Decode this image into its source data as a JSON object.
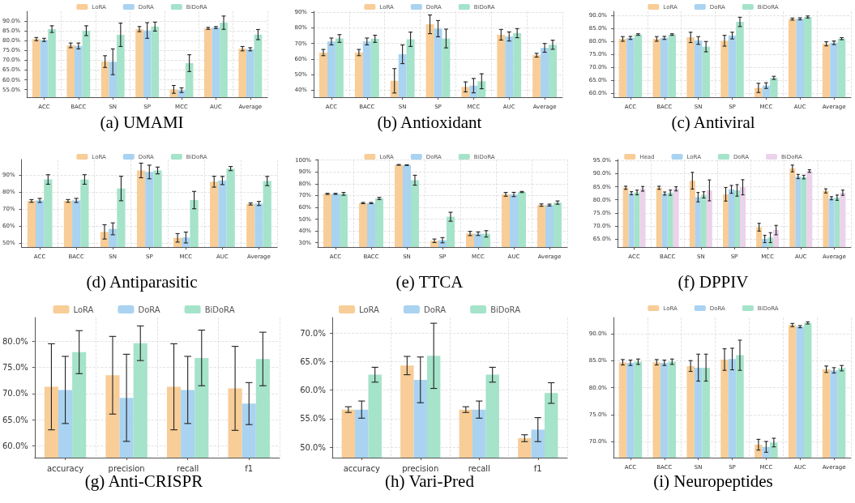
{
  "chart_data": [
    {
      "type": "bar",
      "title": "(a) UMAMI",
      "categories": [
        "ACC",
        "BACC",
        "SN",
        "SP",
        "MCC",
        "AUC",
        "Average"
      ],
      "series": [
        {
          "name": "LoRA",
          "color": "#f8cd97",
          "values": [
            80.8,
            77.6,
            69.3,
            85.9,
            55.1,
            86.3,
            75.9
          ],
          "errors": [
            0.8,
            1.2,
            3,
            1.3,
            2,
            0.5,
            1.1
          ]
        },
        {
          "name": "DoRA",
          "color": "#a9d3f1",
          "values": [
            80.4,
            77.3,
            69.2,
            85.2,
            54.7,
            86.7,
            75.6
          ],
          "errors": [
            0.8,
            1.5,
            6.6,
            4,
            1.2,
            0.5,
            0.8
          ]
        },
        {
          "name": "BiDoRA",
          "color": "#a5e3ca",
          "values": [
            85.9,
            85.1,
            83.0,
            87.2,
            68.5,
            89.2,
            83.1
          ],
          "errors": [
            1.7,
            2.5,
            6,
            2.3,
            4.3,
            3.4,
            2.6
          ]
        }
      ],
      "ylim": [
        51.1,
        95
      ],
      "yticks": [
        {
          "value": 55,
          "label": "55.0%"
        },
        {
          "value": 60,
          "label": "60.0%"
        },
        {
          "value": 65,
          "label": "65.0%"
        },
        {
          "value": 70,
          "label": "70.0%"
        },
        {
          "value": 75,
          "label": "75.0%"
        },
        {
          "value": 80,
          "label": "80.0%"
        },
        {
          "value": 85,
          "label": "85.0%"
        },
        {
          "value": 90,
          "label": "90.0%"
        }
      ],
      "grid": true,
      "legend": "top"
    },
    {
      "type": "bar",
      "title": "(b) Antioxidant",
      "categories": [
        "ACC",
        "BACC",
        "SN",
        "SP",
        "MCC",
        "AUC",
        "Average"
      ],
      "series": [
        {
          "name": "LoRA",
          "color": "#f8cd97",
          "values": [
            64.1,
            64.1,
            46.0,
            82.2,
            42.1,
            75.5,
            62.4
          ],
          "errors": [
            2,
            2,
            7.8,
            6,
            3.2,
            3.4,
            1.2
          ]
        },
        {
          "name": "DoRA",
          "color": "#a9d3f1",
          "values": [
            71.2,
            71.2,
            63.0,
            79.4,
            42.9,
            74.4,
            67.1
          ],
          "errors": [
            2.2,
            2.2,
            6,
            5.2,
            4.6,
            2.9,
            2.8
          ]
        },
        {
          "name": "BiDoRA",
          "color": "#a5e3ca",
          "values": [
            73.1,
            72.9,
            72.6,
            73.1,
            45.7,
            76.5,
            69.1
          ],
          "errors": [
            2.5,
            2.3,
            4.6,
            6,
            4.8,
            2.9,
            2.9
          ]
        }
      ],
      "ylim": [
        35.5,
        90.5
      ],
      "yticks": [
        {
          "value": 40,
          "label": "40%"
        },
        {
          "value": 50,
          "label": "50%"
        },
        {
          "value": 60,
          "label": "60%"
        },
        {
          "value": 70,
          "label": "70%"
        },
        {
          "value": 80,
          "label": "80%"
        },
        {
          "value": 90,
          "label": "90%"
        }
      ],
      "grid": true,
      "legend": "top"
    },
    {
      "type": "bar",
      "title": "(c) Antiviral",
      "categories": [
        "ACC",
        "BACC",
        "SN",
        "SP",
        "MCC",
        "AUC",
        "Average"
      ],
      "series": [
        {
          "name": "LoRA",
          "color": "#f8cd97",
          "values": [
            81.0,
            81.0,
            81.6,
            80.3,
            62.0,
            88.7,
            79.1
          ],
          "errors": [
            0.9,
            0.9,
            2,
            2.1,
            1.8,
            0.4,
            0.8
          ]
        },
        {
          "name": "DoRA",
          "color": "#a9d3f1",
          "values": [
            81.4,
            81.4,
            80.4,
            82.3,
            62.9,
            88.8,
            79.5
          ],
          "errors": [
            0.6,
            0.6,
            1.5,
            1.3,
            1.1,
            0.4,
            0.7
          ]
        },
        {
          "name": "BiDoRA",
          "color": "#a5e3ca",
          "values": [
            82.7,
            82.7,
            78.0,
            87.6,
            65.9,
            89.5,
            81.1
          ],
          "errors": [
            0.3,
            0.3,
            2,
            1.8,
            0.6,
            0.4,
            0.4
          ]
        }
      ],
      "ylim": [
        58.4,
        91.7
      ],
      "yticks": [
        {
          "value": 60,
          "label": "60.0%"
        },
        {
          "value": 65,
          "label": "65.0%"
        },
        {
          "value": 70,
          "label": "70.0%"
        },
        {
          "value": 75,
          "label": "75.0%"
        },
        {
          "value": 80,
          "label": "80.0%"
        },
        {
          "value": 85,
          "label": "85.0%"
        },
        {
          "value": 90,
          "label": "90.0%"
        }
      ],
      "grid": true,
      "legend": "top"
    },
    {
      "type": "bar",
      "title": "(d) Antiparasitic",
      "categories": [
        "ACC",
        "BACC",
        "SN",
        "SP",
        "MCC",
        "AUC",
        "Average"
      ],
      "series": [
        {
          "name": "LoRA",
          "color": "#f8cd97",
          "values": [
            74.7,
            74.7,
            56.5,
            92.6,
            53.0,
            86.0,
            72.9
          ],
          "errors": [
            0.8,
            0.8,
            4.2,
            4.3,
            2.5,
            3.2,
            0.6
          ]
        },
        {
          "name": "DoRA",
          "color": "#a9d3f1",
          "values": [
            75.0,
            75.0,
            58.3,
            91.7,
            53.2,
            86.7,
            73.2
          ],
          "errors": [
            1.2,
            1.2,
            3.5,
            4,
            3.2,
            2.4,
            1.2
          ]
        },
        {
          "name": "BiDoRA",
          "color": "#a5e3ca",
          "values": [
            87.3,
            87.3,
            82.0,
            92.6,
            75.2,
            93.7,
            86.4
          ],
          "errors": [
            2.8,
            2.8,
            7.2,
            2,
            5.1,
            1.2,
            2.7
          ]
        }
      ],
      "ylim": [
        47.6,
        99
      ],
      "yticks": [
        {
          "value": 50,
          "label": "50%"
        },
        {
          "value": 60,
          "label": "60%"
        },
        {
          "value": 70,
          "label": "70%"
        },
        {
          "value": 80,
          "label": "80%"
        },
        {
          "value": 90,
          "label": "90%"
        }
      ],
      "grid": true,
      "legend": "top"
    },
    {
      "type": "bar",
      "title": "(e) TTCA",
      "categories": [
        "ACC",
        "BACC",
        "SN",
        "SP",
        "MCC",
        "AUC",
        "Average"
      ],
      "series": [
        {
          "name": "LoRA",
          "color": "#f8cd97",
          "values": [
            71.4,
            63.6,
            96.0,
            31.6,
            37.8,
            71.0,
            61.9
          ],
          "errors": [
            0.5,
            0.5,
            0.3,
            1.5,
            1.8,
            1.6,
            1.0
          ]
        },
        {
          "name": "DoRA",
          "color": "#a9d3f1",
          "values": [
            71.4,
            63.6,
            95.8,
            32.1,
            37.6,
            70.9,
            61.9
          ],
          "errors": [
            0.5,
            0.5,
            0.3,
            2.2,
            1.5,
            1.8,
            0.8
          ]
        },
        {
          "name": "BiDoRA",
          "color": "#a5e3ca",
          "values": [
            71.4,
            67.5,
            83.0,
            52.0,
            37.5,
            73.0,
            64.0
          ],
          "errors": [
            1.2,
            0.9,
            4.2,
            3.8,
            2.7,
            0.5,
            1.4
          ]
        }
      ],
      "ylim": [
        26.3,
        100.5
      ],
      "yticks": [
        {
          "value": 30,
          "label": "30%"
        },
        {
          "value": 40,
          "label": "40%"
        },
        {
          "value": 50,
          "label": "50%"
        },
        {
          "value": 60,
          "label": "60%"
        },
        {
          "value": 70,
          "label": "70%"
        },
        {
          "value": 80,
          "label": "80%"
        },
        {
          "value": 90,
          "label": "90%"
        },
        {
          "value": 100,
          "label": "100%"
        }
      ],
      "grid": true,
      "legend": "top"
    },
    {
      "type": "bar",
      "title": "(f) DPPIV",
      "categories": [
        "ACC",
        "BACC",
        "SN",
        "SP",
        "MCC",
        "AUC",
        "Average"
      ],
      "series": [
        {
          "name": "Head",
          "color": "#f8cd97",
          "values": [
            84.6,
            84.6,
            87.3,
            82.1,
            69.5,
            92.0,
            83.4
          ],
          "errors": [
            0.6,
            0.6,
            3.2,
            2.6,
            1.5,
            1.3,
            0.8
          ]
        },
        {
          "name": "LoRA",
          "color": "#a9d3f1",
          "values": [
            82.5,
            82.4,
            81.0,
            84.0,
            65.0,
            88.9,
            80.6
          ],
          "errors": [
            0.6,
            0.6,
            1.8,
            1.5,
            1.4,
            0.8,
            0.6
          ]
        },
        {
          "name": "DoRA",
          "color": "#a5e3ca",
          "values": [
            82.8,
            82.7,
            81.9,
            83.6,
            65.5,
            88.7,
            80.8
          ],
          "errors": [
            0.9,
            1.0,
            1.2,
            2.2,
            1.9,
            0.7,
            1.0
          ]
        },
        {
          "name": "BiDoRA",
          "color": "#ecd2ea",
          "values": [
            84.2,
            84.2,
            83.6,
            84.8,
            68.4,
            91.0,
            82.7
          ],
          "errors": [
            0.9,
            0.8,
            4,
            2.9,
            1.8,
            0.5,
            1.0
          ]
        }
      ],
      "ylim": [
        61.9,
        95.4
      ],
      "yticks": [
        {
          "value": 65,
          "label": "65.0%"
        },
        {
          "value": 70,
          "label": "70.0%"
        },
        {
          "value": 75,
          "label": "75.0%"
        },
        {
          "value": 80,
          "label": "80.0%"
        },
        {
          "value": 85,
          "label": "85.0%"
        },
        {
          "value": 90,
          "label": "90.0%"
        },
        {
          "value": 95,
          "label": "95.0%"
        }
      ],
      "grid": true,
      "legend": "top"
    },
    {
      "type": "bar",
      "title": "(g) Anti-CRISPR",
      "categories": [
        "accuracy",
        "precision",
        "recall",
        "f1"
      ],
      "series": [
        {
          "name": "LoRA",
          "color": "#f8cd97",
          "values": [
            71.3,
            73.5,
            71.3,
            71.0
          ],
          "errors": [
            8.2,
            7.4,
            8.2,
            8.0
          ]
        },
        {
          "name": "DoRA",
          "color": "#a9d3f1",
          "values": [
            70.7,
            69.2,
            70.7,
            68.1
          ],
          "errors": [
            6.4,
            8.3,
            6.4,
            4.0
          ]
        },
        {
          "name": "BiDoRA",
          "color": "#a5e3ca",
          "values": [
            77.9,
            79.6,
            76.8,
            76.6
          ],
          "errors": [
            4.1,
            3.3,
            5.3,
            5.1
          ]
        }
      ],
      "ylim": [
        57.8,
        84.5
      ],
      "yticks": [
        {
          "value": 60,
          "label": "60.0%"
        },
        {
          "value": 65,
          "label": "65.0%"
        },
        {
          "value": 70,
          "label": "70.0%"
        },
        {
          "value": 75,
          "label": "75.0%"
        },
        {
          "value": 80,
          "label": "80.0%"
        }
      ],
      "grid": true,
      "legend": "top"
    },
    {
      "type": "bar",
      "title": "(h) Vari-Pred",
      "categories": [
        "accuracy",
        "precision",
        "recall",
        "f1"
      ],
      "series": [
        {
          "name": "LoRA",
          "color": "#f8cd97",
          "values": [
            56.6,
            64.3,
            56.6,
            51.6
          ],
          "errors": [
            0.5,
            1.6,
            0.5,
            0.6
          ]
        },
        {
          "name": "DoRA",
          "color": "#a9d3f1",
          "values": [
            56.6,
            61.8,
            56.6,
            53.1
          ],
          "errors": [
            1.5,
            4.0,
            1.5,
            2.1
          ]
        },
        {
          "name": "BiDoRA",
          "color": "#a5e3ca",
          "values": [
            62.7,
            66.0,
            62.7,
            59.5
          ],
          "errors": [
            1.3,
            5.7,
            1.3,
            1.8
          ]
        }
      ],
      "ylim": [
        48.2,
        72.7
      ],
      "yticks": [
        {
          "value": 50,
          "label": "50.0%"
        },
        {
          "value": 55,
          "label": "55.0%"
        },
        {
          "value": 60,
          "label": "60.0%"
        },
        {
          "value": 65,
          "label": "65.0%"
        },
        {
          "value": 70,
          "label": "70.0%"
        }
      ],
      "grid": true,
      "legend": "top"
    },
    {
      "type": "bar",
      "title": "(i) Neuropeptides",
      "categories": [
        "ACC",
        "BACC",
        "SN",
        "SP",
        "MCC",
        "AUC",
        "Average"
      ],
      "series": [
        {
          "name": "LoRA",
          "color": "#f8cd97",
          "values": [
            84.7,
            84.7,
            84.0,
            85.2,
            69.4,
            91.6,
            83.4
          ],
          "errors": [
            0.5,
            0.5,
            1,
            2,
            1,
            0.3,
            0.6
          ]
        },
        {
          "name": "DoRA",
          "color": "#a9d3f1",
          "values": [
            84.6,
            84.6,
            83.7,
            85.3,
            69.0,
            91.3,
            83.2
          ],
          "errors": [
            0.5,
            0.5,
            2.5,
            2,
            1,
            0.2,
            0.5
          ]
        },
        {
          "name": "BiDoRA",
          "color": "#a5e3ca",
          "values": [
            84.8,
            84.8,
            83.7,
            86.0,
            69.8,
            92.0,
            83.6
          ],
          "errors": [
            0.5,
            0.5,
            2.5,
            2.8,
            0.8,
            0.2,
            0.5
          ]
        }
      ],
      "ylim": [
        67,
        93
      ],
      "yticks": [
        {
          "value": 70,
          "label": "70.0%"
        },
        {
          "value": 75,
          "label": "75.0%"
        },
        {
          "value": 80,
          "label": "80.0%"
        },
        {
          "value": 85,
          "label": "85.0%"
        },
        {
          "value": 90,
          "label": "90.0%"
        }
      ],
      "grid": true,
      "legend": "top"
    }
  ]
}
